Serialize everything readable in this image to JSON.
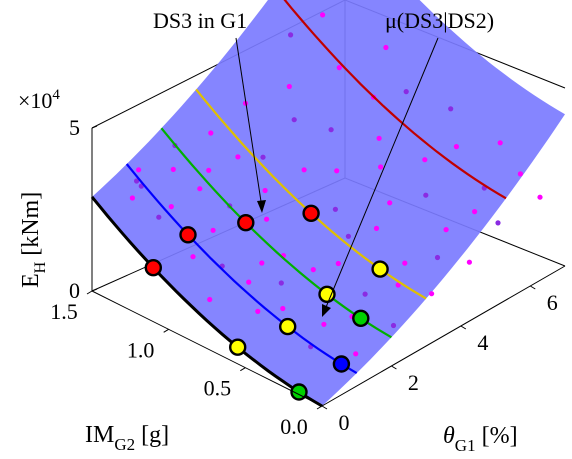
{
  "chart_data": {
    "type": "scatter",
    "title": "",
    "xlabel": {
      "base": "θ",
      "sub": "G1",
      "unit": " [%]"
    },
    "ylabel": {
      "base": "IM",
      "sub": "G2",
      "unit": " [g]"
    },
    "zlabel": {
      "base": "E",
      "sub": "H",
      "unit": " [kNm]"
    },
    "z_exponent_label": {
      "base": "×10",
      "exp": "4"
    },
    "x_ticks": [
      "0",
      "2",
      "4",
      "6"
    ],
    "y_ticks": [
      "0.0",
      "0.5",
      "1.0",
      "1.5"
    ],
    "z_ticks": [
      "0",
      "5"
    ],
    "xlim": [
      0,
      7
    ],
    "ylim": [
      0,
      1.5
    ],
    "zlim": [
      0,
      5
    ],
    "surface_color": "#7b7bff",
    "point_color": "#ff00ff",
    "point_color_alt": "#8a2be2",
    "annotations": [
      {
        "text": "DS3 in G1",
        "target": "scatter point on the yellow curve"
      },
      {
        "text": "μ(DS3|DS2)",
        "target": "yellow marker on the yellow curve"
      }
    ],
    "curves": [
      {
        "color": "#000000",
        "theta": 0.0
      },
      {
        "color": "#0000ff",
        "theta": 1.0
      },
      {
        "color": "#00b000",
        "theta": 2.0
      },
      {
        "color": "#e0c000",
        "theta": 3.0
      },
      {
        "color": "#c00000",
        "theta": 5.3
      }
    ],
    "markers": [
      {
        "x": 0.0,
        "y": 1.1,
        "color": "#ff0000"
      },
      {
        "x": 0.0,
        "y": 0.55,
        "color": "#ffff00"
      },
      {
        "x": 0.0,
        "y": 0.15,
        "color": "#00d000"
      },
      {
        "x": 1.0,
        "y": 1.1,
        "color": "#ff0000"
      },
      {
        "x": 1.0,
        "y": 0.45,
        "color": "#ffff00"
      },
      {
        "x": 1.0,
        "y": 0.1,
        "color": "#0000ff"
      },
      {
        "x": 2.0,
        "y": 0.95,
        "color": "#ff0000"
      },
      {
        "x": 2.0,
        "y": 0.42,
        "color": "#ffff00"
      },
      {
        "x": 2.0,
        "y": 0.2,
        "color": "#00d000"
      },
      {
        "x": 3.0,
        "y": 0.75,
        "color": "#ff0000"
      },
      {
        "x": 3.0,
        "y": 0.3,
        "color": "#ffff00"
      }
    ],
    "scatter_points": [
      {
        "x": 0.4,
        "y": 1.3,
        "z": 3.6
      },
      {
        "x": 0.5,
        "y": 1.35,
        "z": 2.9
      },
      {
        "x": 0.9,
        "y": 1.4,
        "z": 3.4
      },
      {
        "x": 1.2,
        "y": 1.45,
        "z": 2.6
      },
      {
        "x": 1.4,
        "y": 1.3,
        "z": 2.2
      },
      {
        "x": 1.9,
        "y": 1.4,
        "z": 2.8
      },
      {
        "x": 2.3,
        "y": 1.48,
        "z": 3.1
      },
      {
        "x": 2.7,
        "y": 1.35,
        "z": 2.4
      },
      {
        "x": 3.2,
        "y": 1.45,
        "z": 3.0
      },
      {
        "x": 3.6,
        "y": 1.2,
        "z": 2.6
      },
      {
        "x": 4.2,
        "y": 1.45,
        "z": 3.3
      },
      {
        "x": 4.8,
        "y": 1.3,
        "z": 3.8
      },
      {
        "x": 5.5,
        "y": 1.45,
        "z": 4.6
      },
      {
        "x": 6.2,
        "y": 1.4,
        "z": 4.9
      },
      {
        "x": 0.7,
        "y": 1.0,
        "z": 1.8
      },
      {
        "x": 1.1,
        "y": 0.9,
        "z": 1.5
      },
      {
        "x": 1.5,
        "y": 1.05,
        "z": 2.0
      },
      {
        "x": 1.8,
        "y": 0.8,
        "z": 1.4
      },
      {
        "x": 2.2,
        "y": 1.1,
        "z": 2.2
      },
      {
        "x": 2.6,
        "y": 0.95,
        "z": 1.9
      },
      {
        "x": 3.0,
        "y": 1.05,
        "z": 2.3
      },
      {
        "x": 3.4,
        "y": 0.85,
        "z": 1.9
      },
      {
        "x": 3.9,
        "y": 1.0,
        "z": 2.5
      },
      {
        "x": 4.4,
        "y": 0.9,
        "z": 2.4
      },
      {
        "x": 4.9,
        "y": 1.05,
        "z": 3.0
      },
      {
        "x": 5.4,
        "y": 0.85,
        "z": 2.9
      },
      {
        "x": 5.9,
        "y": 1.0,
        "z": 3.5
      },
      {
        "x": 6.4,
        "y": 0.9,
        "z": 3.6
      },
      {
        "x": 0.8,
        "y": 0.6,
        "z": 1.0
      },
      {
        "x": 1.3,
        "y": 0.55,
        "z": 0.9
      },
      {
        "x": 1.7,
        "y": 0.65,
        "z": 1.2
      },
      {
        "x": 2.4,
        "y": 0.6,
        "z": 1.3
      },
      {
        "x": 2.9,
        "y": 0.55,
        "z": 1.3
      },
      {
        "x": 3.5,
        "y": 0.62,
        "z": 1.6
      },
      {
        "x": 4.0,
        "y": 0.55,
        "z": 1.7
      },
      {
        "x": 4.6,
        "y": 0.6,
        "z": 2.0
      },
      {
        "x": 5.2,
        "y": 0.5,
        "z": 2.1
      },
      {
        "x": 5.7,
        "y": 0.62,
        "z": 2.6
      },
      {
        "x": 6.3,
        "y": 0.55,
        "z": 2.8
      },
      {
        "x": 1.0,
        "y": 0.3,
        "z": 0.5
      },
      {
        "x": 1.6,
        "y": 0.35,
        "z": 0.7
      },
      {
        "x": 2.1,
        "y": 0.28,
        "z": 0.8
      },
      {
        "x": 2.7,
        "y": 0.33,
        "z": 1.0
      },
      {
        "x": 3.3,
        "y": 0.25,
        "z": 1.1
      },
      {
        "x": 3.8,
        "y": 0.32,
        "z": 1.3
      },
      {
        "x": 4.3,
        "y": 0.22,
        "z": 1.4
      },
      {
        "x": 4.9,
        "y": 0.3,
        "z": 1.7
      },
      {
        "x": 5.5,
        "y": 0.25,
        "z": 2.0
      },
      {
        "x": 6.0,
        "y": 0.3,
        "z": 2.3
      },
      {
        "x": 6.6,
        "y": 0.2,
        "z": 2.6
      },
      {
        "x": 1.5,
        "y": 0.12,
        "z": 0.4
      },
      {
        "x": 2.5,
        "y": 0.1,
        "z": 0.7
      },
      {
        "x": 3.6,
        "y": 0.1,
        "z": 1.0
      },
      {
        "x": 4.6,
        "y": 0.08,
        "z": 1.4
      },
      {
        "x": 5.6,
        "y": 0.12,
        "z": 1.9
      },
      {
        "x": 6.5,
        "y": 0.05,
        "z": 2.3
      },
      {
        "x": 0.3,
        "y": 0.8,
        "z": 1.2
      },
      {
        "x": 0.6,
        "y": 1.2,
        "z": 2.6
      },
      {
        "x": 2.0,
        "y": 1.25,
        "z": 2.5
      },
      {
        "x": 3.1,
        "y": 1.25,
        "z": 2.8
      },
      {
        "x": 4.5,
        "y": 1.2,
        "z": 3.2
      },
      {
        "x": 5.8,
        "y": 1.2,
        "z": 4.0
      },
      {
        "x": 6.7,
        "y": 1.1,
        "z": 4.3
      },
      {
        "x": 6.8,
        "y": 0.7,
        "z": 3.3
      },
      {
        "x": 6.9,
        "y": 0.4,
        "z": 2.9
      },
      {
        "x": 2.2,
        "y": 0.75,
        "z": 1.5
      },
      {
        "x": 3.7,
        "y": 0.75,
        "z": 2.0
      },
      {
        "x": 5.0,
        "y": 0.75,
        "z": 2.5
      },
      {
        "x": 1.2,
        "y": 0.75,
        "z": 1.3
      }
    ]
  }
}
